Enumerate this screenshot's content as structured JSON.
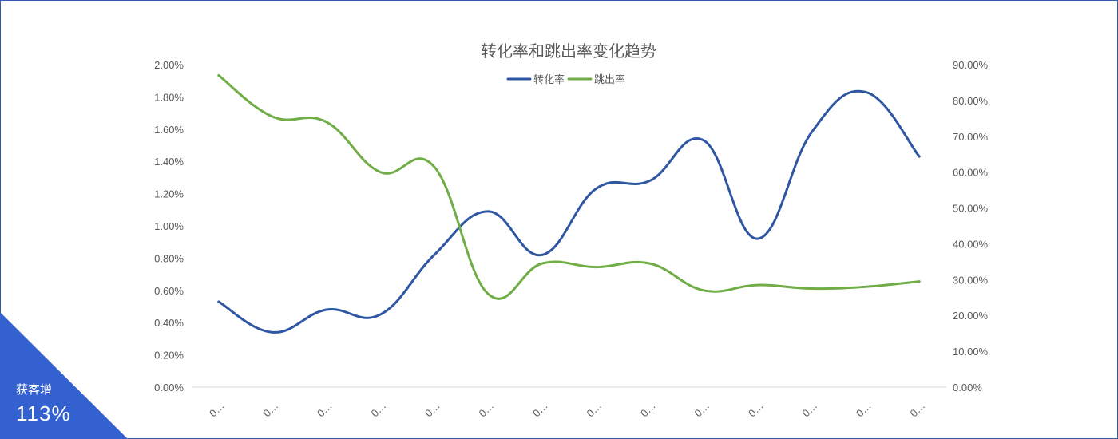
{
  "chart_data": {
    "type": "line",
    "title": "转化率和跳出率变化趋势",
    "categories": [
      "0…",
      "0…",
      "0…",
      "0…",
      "0…",
      "0…",
      "0…",
      "0…",
      "0…",
      "0…",
      "0…",
      "0…",
      "0…",
      "0…"
    ],
    "y_left": {
      "min": 0,
      "max": 0.02,
      "ticks": [
        "0.00%",
        "0.20%",
        "0.40%",
        "0.60%",
        "0.80%",
        "1.00%",
        "1.20%",
        "1.40%",
        "1.60%",
        "1.80%",
        "2.00%"
      ]
    },
    "y_right": {
      "min": 0,
      "max": 0.9,
      "ticks": [
        "0.00%",
        "10.00%",
        "20.00%",
        "30.00%",
        "40.00%",
        "50.00%",
        "60.00%",
        "70.00%",
        "80.00%",
        "90.00%"
      ]
    },
    "series": [
      {
        "name": "转化率",
        "axis": "left",
        "color": "#2e56a2",
        "values": [
          0.0053,
          0.0034,
          0.0048,
          0.0045,
          0.0082,
          0.0109,
          0.0082,
          0.0123,
          0.0128,
          0.0153,
          0.0092,
          0.0158,
          0.0183,
          0.0143
        ]
      },
      {
        "name": "跳出率",
        "axis": "right",
        "color": "#70ad47",
        "values": [
          0.87,
          0.755,
          0.74,
          0.6,
          0.615,
          0.26,
          0.345,
          0.335,
          0.345,
          0.27,
          0.285,
          0.275,
          0.28,
          0.295
        ]
      }
    ],
    "legend": "top",
    "grid": false
  },
  "badge": {
    "label": "获客增",
    "value": "113%",
    "color": "#3361d0"
  }
}
